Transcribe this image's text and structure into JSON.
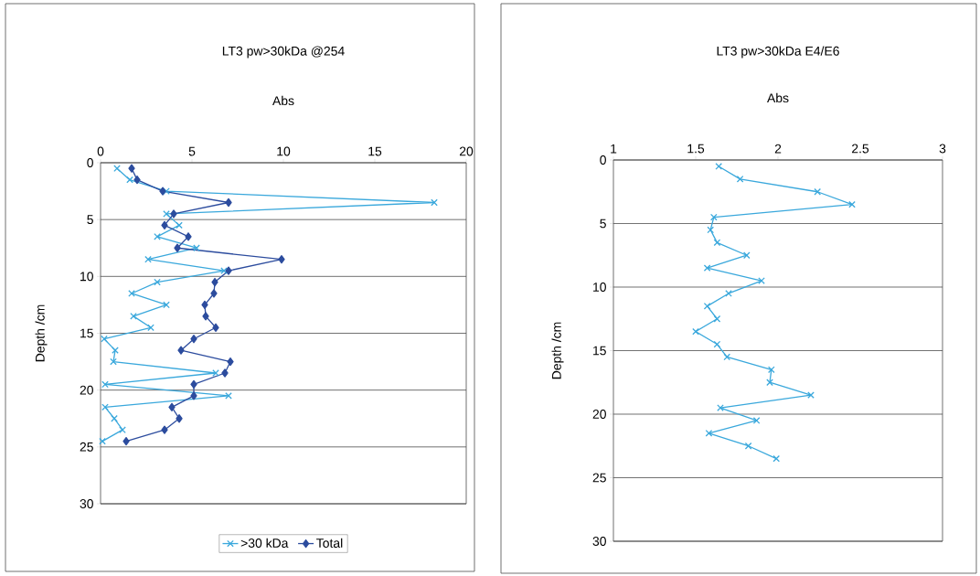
{
  "chart_data": [
    {
      "type": "line",
      "title": "LT3 pw>30kDa @254",
      "xlabel": "Abs",
      "ylabel": "Depth /cm",
      "xlim": [
        0,
        20
      ],
      "xticks": [
        0,
        5,
        10,
        15,
        20
      ],
      "ylim": [
        30,
        0
      ],
      "yticks": [
        0,
        5,
        10,
        15,
        20,
        25,
        30
      ],
      "grid": "y",
      "legend": "bottom",
      "series": [
        {
          "name": ">30 kDa",
          "color": "#3aa8dc",
          "marker": "cross",
          "x": [
            0.9,
            1.6,
            3.6,
            18.25,
            3.6,
            4.3,
            3.1,
            5.25,
            2.6,
            6.75,
            3.1,
            1.7,
            3.6,
            1.8,
            2.75,
            0.2,
            0.8,
            0.7,
            6.3,
            0.25,
            7.0,
            0.25,
            0.75,
            1.2,
            0.1
          ],
          "values": [
            0.5,
            1.5,
            2.5,
            3.5,
            4.5,
            5.5,
            6.5,
            7.5,
            8.5,
            9.5,
            10.5,
            11.5,
            12.5,
            13.5,
            14.5,
            15.5,
            16.5,
            17.5,
            18.5,
            19.5,
            20.5,
            21.5,
            22.5,
            23.5,
            24.5
          ]
        },
        {
          "name": "Total",
          "color": "#2c4c9e",
          "marker": "diamond",
          "x": [
            1.7,
            2.0,
            3.4,
            7.0,
            4.0,
            3.5,
            4.8,
            4.2,
            9.9,
            7.0,
            6.25,
            6.2,
            5.7,
            5.75,
            6.3,
            5.1,
            4.4,
            7.1,
            6.8,
            5.1,
            5.1,
            3.9,
            4.3,
            3.5,
            1.4
          ],
          "values": [
            0.5,
            1.5,
            2.5,
            3.5,
            4.5,
            5.5,
            6.5,
            7.5,
            8.5,
            9.5,
            10.5,
            11.5,
            12.5,
            13.5,
            14.5,
            15.5,
            16.5,
            17.5,
            18.5,
            19.5,
            20.5,
            21.5,
            22.5,
            23.5,
            24.5
          ]
        }
      ]
    },
    {
      "type": "line",
      "title": "LT3 pw>30kDa E4/E6",
      "xlabel": "Abs",
      "ylabel": "Depth /cm",
      "xlim": [
        1,
        3
      ],
      "xticks": [
        1,
        1.5,
        2,
        2.5,
        3
      ],
      "ylim": [
        30,
        0
      ],
      "yticks": [
        0,
        5,
        10,
        15,
        20,
        25,
        30
      ],
      "grid": "y",
      "series": [
        {
          "color": "#3aa8dc",
          "marker": "cross",
          "x": [
            1.64,
            1.77,
            2.24,
            2.45,
            1.61,
            1.59,
            1.63,
            1.81,
            1.57,
            1.9,
            1.7,
            1.57,
            1.63,
            1.5,
            1.63,
            1.69,
            1.96,
            1.95,
            2.2,
            1.65,
            1.87,
            1.58,
            1.82,
            1.99
          ],
          "values": [
            0.5,
            1.5,
            2.5,
            3.5,
            4.5,
            5.5,
            6.5,
            7.5,
            8.5,
            9.5,
            10.5,
            11.5,
            12.5,
            13.5,
            14.5,
            15.5,
            16.5,
            17.5,
            18.5,
            19.5,
            20.5,
            21.5,
            22.5,
            23.5
          ]
        }
      ]
    }
  ]
}
